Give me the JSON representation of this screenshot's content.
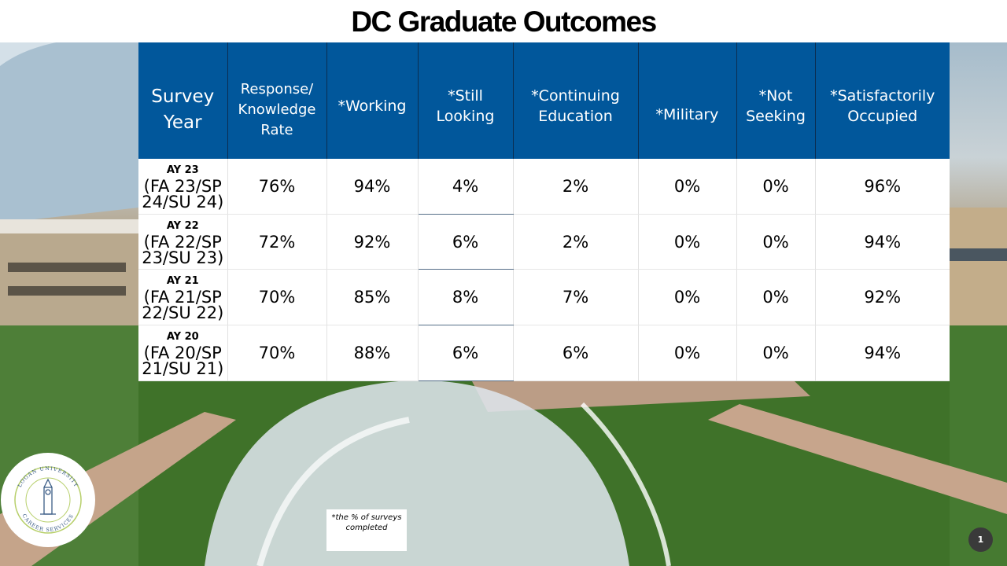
{
  "title": "DC Graduate Outcomes",
  "table": {
    "headers": [
      "Survey Year",
      "Response/ Knowledge Rate",
      "*Working",
      "*Still Looking",
      "*Continuing Education",
      "*Military",
      "*Not Seeking",
      "*Satisfactorily Occupied"
    ],
    "rows": [
      {
        "year": "AY 23",
        "terms": "(FA 23/SP 24/SU 24)",
        "values": [
          "76%",
          "94%",
          "4%",
          "2%",
          "0%",
          "0%",
          "96%"
        ]
      },
      {
        "year": "AY 22",
        "terms": "(FA 22/SP 23/SU 23)",
        "values": [
          "72%",
          "92%",
          "6%",
          "2%",
          "0%",
          "0%",
          "94%"
        ]
      },
      {
        "year": "AY 21",
        "terms": "(FA 21/SP 22/SU 22)",
        "values": [
          "70%",
          "85%",
          "8%",
          "7%",
          "0%",
          "0%",
          "92%"
        ]
      },
      {
        "year": "AY 20",
        "terms": "(FA 20/SP 21/SU 21)",
        "values": [
          "70%",
          "88%",
          "6%",
          "6%",
          "0%",
          "0%",
          "94%"
        ]
      }
    ]
  },
  "footnote": "*the % of surveys completed",
  "slide_number": "1",
  "logo": {
    "top_text": "LOGAN UNIVERSITY",
    "bottom_text": "CAREER SERVICES",
    "icon": "clock-tower-icon"
  },
  "colors": {
    "header_bg": "#01579b",
    "header_text": "#ffffff",
    "slide_number_bg": "#3a3a3a"
  }
}
